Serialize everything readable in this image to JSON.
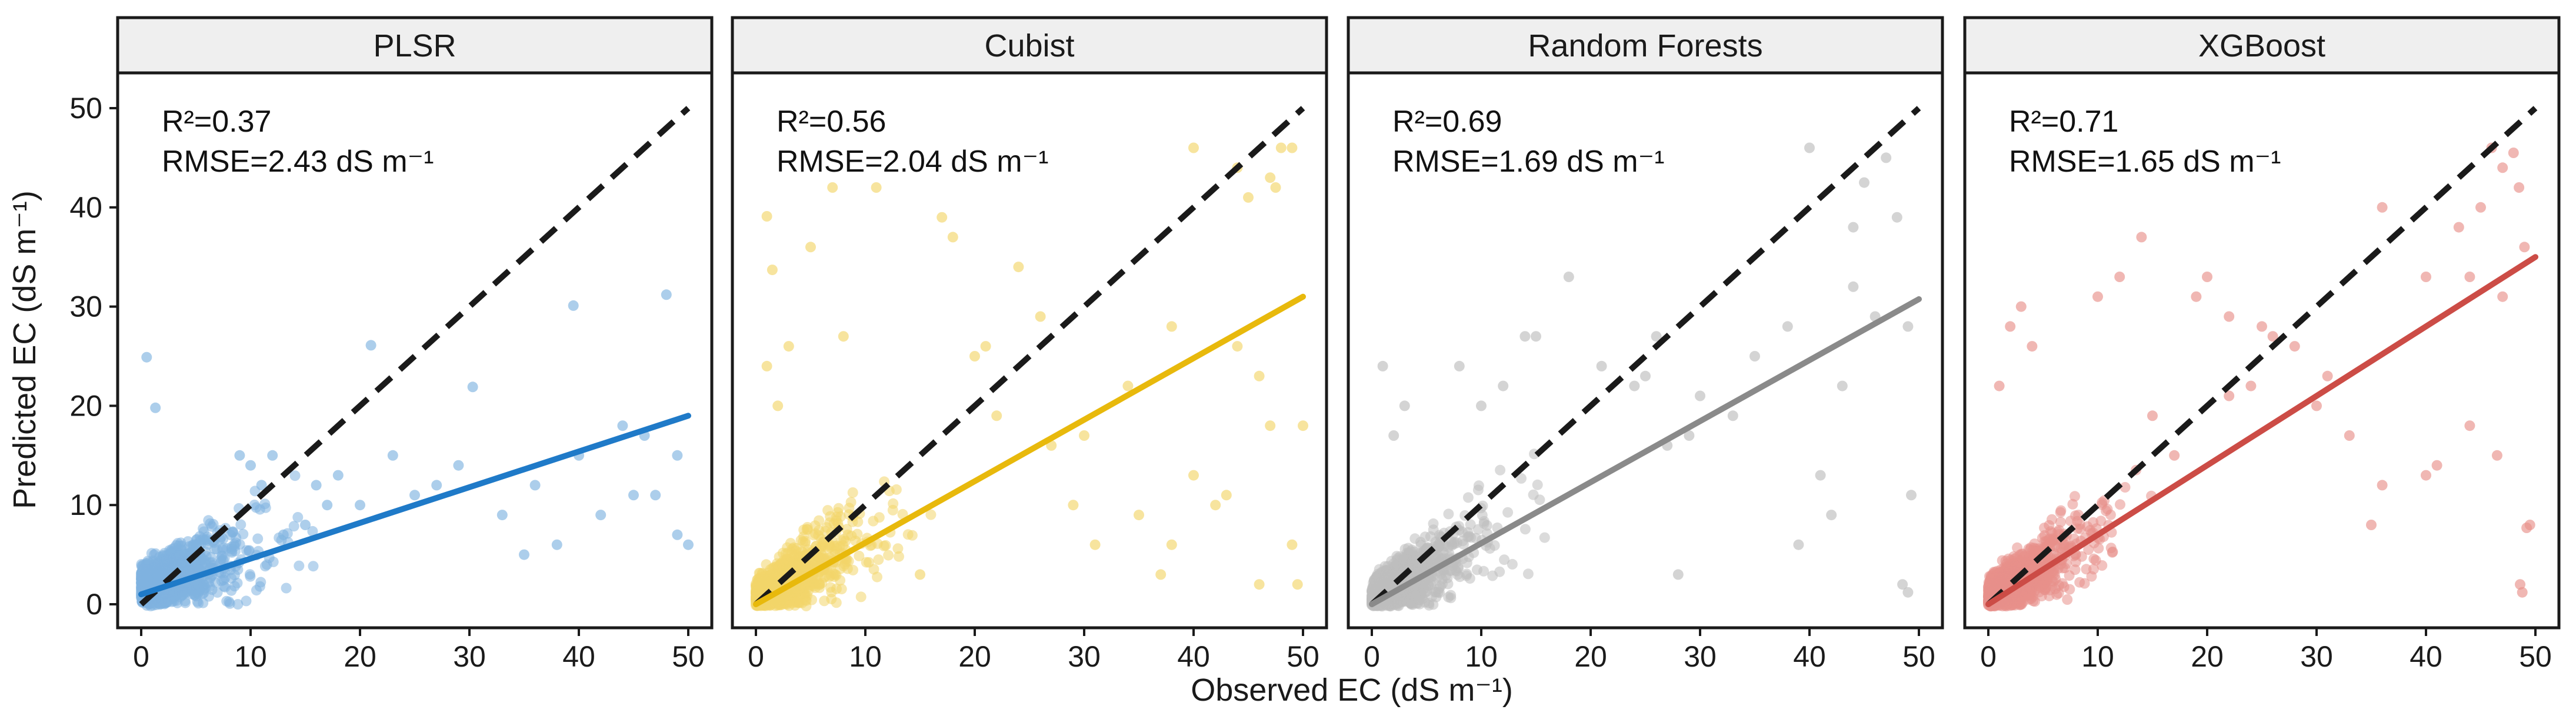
{
  "chart_data": {
    "type": "scatter",
    "xlabel": "Observed EC (dS m⁻¹)",
    "ylabel": "Predicted EC (dS m⁻¹)",
    "xlim": [
      0,
      50
    ],
    "ylim": [
      0,
      50
    ],
    "xticks": [
      0,
      10,
      20,
      30,
      40,
      50
    ],
    "yticks": [
      0,
      10,
      20,
      30,
      40,
      50
    ],
    "reference_line": "1:1 dashed",
    "panels": [
      {
        "title": "PLSR",
        "r2_text": "R²=0.37",
        "rmse_text": "RMSE=2.43 dS m⁻¹",
        "color": "#1f7ac8",
        "point_color": "#7fb3e0",
        "fit": {
          "intercept": 1.0,
          "slope": 0.36
        },
        "seed": 11,
        "n_points": 1200,
        "points": [
          [
            39.5,
            30.1
          ],
          [
            48,
            31.2
          ],
          [
            30.3,
            21.9
          ],
          [
            21,
            26.1
          ],
          [
            25,
            11
          ],
          [
            0.5,
            24.9
          ],
          [
            1.3,
            19.8
          ],
          [
            40,
            15
          ],
          [
            42,
            9
          ],
          [
            49,
            15
          ],
          [
            47,
            11
          ],
          [
            50,
            6
          ],
          [
            45,
            11
          ],
          [
            38,
            6
          ],
          [
            35,
            5
          ],
          [
            49,
            7
          ],
          [
            44,
            18
          ],
          [
            46,
            17
          ],
          [
            23,
            15
          ],
          [
            27,
            12
          ],
          [
            33,
            9
          ],
          [
            36,
            12
          ],
          [
            29,
            14
          ],
          [
            20,
            10
          ],
          [
            18,
            13
          ],
          [
            17,
            10
          ],
          [
            12,
            15
          ],
          [
            13,
            7
          ],
          [
            15,
            8
          ],
          [
            16,
            12
          ],
          [
            10,
            14
          ],
          [
            9,
            15
          ],
          [
            11,
            12
          ]
        ]
      },
      {
        "title": "Cubist",
        "r2_text": "R²=0.56",
        "rmse_text": "RMSE=2.04 dS m⁻¹",
        "color": "#e8b90c",
        "point_color": "#f2d56a",
        "fit": {
          "intercept": 0.0,
          "slope": 0.62
        },
        "seed": 23,
        "n_points": 1200,
        "points": [
          [
            1,
            39.1
          ],
          [
            1.5,
            33.7
          ],
          [
            5,
            36
          ],
          [
            7,
            42
          ],
          [
            11,
            42
          ],
          [
            17,
            39
          ],
          [
            18,
            37
          ],
          [
            24,
            34
          ],
          [
            26,
            29
          ],
          [
            40,
            46
          ],
          [
            44,
            44
          ],
          [
            45,
            41
          ],
          [
            47,
            43
          ],
          [
            48,
            46
          ],
          [
            49,
            46
          ],
          [
            47.5,
            42
          ],
          [
            38,
            28
          ],
          [
            46,
            23
          ],
          [
            47,
            18
          ],
          [
            50,
            18
          ],
          [
            49,
            6
          ],
          [
            49.5,
            2
          ],
          [
            42,
            10
          ],
          [
            43,
            11
          ],
          [
            37,
            3
          ],
          [
            38,
            6
          ],
          [
            27,
            16
          ],
          [
            30,
            17
          ],
          [
            29,
            10
          ],
          [
            34,
            22
          ],
          [
            35,
            9
          ],
          [
            22,
            19
          ],
          [
            20,
            25
          ],
          [
            21,
            26
          ],
          [
            8,
            27
          ],
          [
            3,
            26
          ],
          [
            2,
            20
          ],
          [
            1,
            24
          ],
          [
            15,
            3
          ],
          [
            40,
            13
          ],
          [
            44,
            26
          ],
          [
            46,
            2
          ],
          [
            31,
            6
          ]
        ]
      },
      {
        "title": "Random Forests",
        "r2_text": "R²=0.69",
        "rmse_text": "RMSE=1.69 dS m⁻¹",
        "color": "#8a8a8a",
        "point_color": "#bdbdbd",
        "fit": {
          "intercept": 0.0,
          "slope": 0.615
        },
        "seed": 37,
        "n_points": 1200,
        "points": [
          [
            40,
            46
          ],
          [
            45,
            42.5
          ],
          [
            47,
            45
          ],
          [
            48,
            39
          ],
          [
            44,
            38
          ],
          [
            49,
            28
          ],
          [
            49.3,
            11
          ],
          [
            49,
            1.2
          ],
          [
            48.5,
            2
          ],
          [
            41,
            13
          ],
          [
            42,
            9
          ],
          [
            39,
            6
          ],
          [
            28,
            3
          ],
          [
            27,
            16
          ],
          [
            29,
            17
          ],
          [
            33,
            19
          ],
          [
            35,
            25
          ],
          [
            38,
            28
          ],
          [
            18,
            33
          ],
          [
            21,
            24
          ],
          [
            24,
            22
          ],
          [
            25,
            23
          ],
          [
            15,
            27
          ],
          [
            14,
            27
          ],
          [
            12,
            22
          ],
          [
            10,
            20
          ],
          [
            30,
            21
          ],
          [
            26,
            27
          ],
          [
            8,
            24
          ],
          [
            1,
            24
          ],
          [
            3,
            20
          ],
          [
            2,
            17
          ],
          [
            44,
            32
          ],
          [
            46,
            29
          ],
          [
            43,
            22
          ]
        ]
      },
      {
        "title": "XGBoost",
        "r2_text": "R²=0.71",
        "rmse_text": "RMSE=1.65 dS m⁻¹",
        "color": "#cc4c46",
        "point_color": "#e8908b",
        "fit": {
          "intercept": 0.0,
          "slope": 0.7
        },
        "seed": 53,
        "n_points": 1200,
        "points": [
          [
            46,
            46
          ],
          [
            47,
            44
          ],
          [
            48,
            45.5
          ],
          [
            49,
            36
          ],
          [
            48.5,
            42
          ],
          [
            45,
            40
          ],
          [
            43,
            38
          ],
          [
            36,
            40
          ],
          [
            40,
            33
          ],
          [
            44,
            33
          ],
          [
            47,
            31
          ],
          [
            46.5,
            15
          ],
          [
            49.2,
            7.7
          ],
          [
            48.8,
            1.2
          ],
          [
            49.5,
            8
          ],
          [
            48.6,
            2
          ],
          [
            40,
            13
          ],
          [
            44,
            18
          ],
          [
            41,
            14
          ],
          [
            36,
            12
          ],
          [
            35,
            8
          ],
          [
            33,
            17
          ],
          [
            30,
            20
          ],
          [
            31,
            23
          ],
          [
            28,
            26
          ],
          [
            26,
            27
          ],
          [
            25,
            28
          ],
          [
            22,
            29
          ],
          [
            19,
            31
          ],
          [
            20,
            33
          ],
          [
            14,
            37
          ],
          [
            12,
            33
          ],
          [
            10,
            31
          ],
          [
            3,
            30
          ],
          [
            2,
            28
          ],
          [
            4,
            26
          ],
          [
            1,
            22
          ],
          [
            15,
            19
          ],
          [
            17,
            15
          ],
          [
            22,
            21
          ],
          [
            24,
            22
          ]
        ]
      }
    ]
  }
}
